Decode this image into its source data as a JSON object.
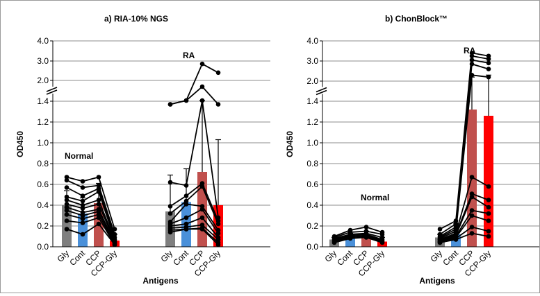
{
  "chart_data": [
    {
      "type": "bar",
      "title": "a) RIA-10% NGS",
      "xlabel": "Antigens",
      "ylabel": "OD450",
      "yticks": [
        "0.0",
        "0.2",
        "0.4",
        "0.6",
        "0.8",
        "1.0",
        "1.2",
        "1.4",
        "2.0",
        "3.0",
        "4.0"
      ],
      "axis_break": "between 1.4 and 2.0",
      "grid": true,
      "colors": {
        "Gly": "#7f7f7f",
        "Cont": "#4a90d9",
        "CCP": "#c0504d",
        "CCP-Gly": "#ff0000"
      },
      "groups": [
        {
          "label": "Normal",
          "categories": [
            "Gly",
            "Cont",
            "CCP",
            "CCP-Gly"
          ],
          "bar_values": [
            0.4,
            0.32,
            0.42,
            0.06
          ],
          "errors": [
            0.54,
            0.47,
            0.61,
            0.12
          ],
          "lines": [
            [
              0.67,
              0.63,
              0.67,
              0.17
            ],
            [
              0.64,
              0.57,
              0.59,
              0.12
            ],
            [
              0.57,
              0.49,
              0.56,
              0.09
            ],
            [
              0.48,
              0.44,
              0.53,
              0.07
            ],
            [
              0.45,
              0.4,
              0.45,
              0.06
            ],
            [
              0.41,
              0.37,
              0.41,
              0.05
            ],
            [
              0.38,
              0.33,
              0.36,
              0.04
            ],
            [
              0.35,
              0.3,
              0.34,
              0.04
            ],
            [
              0.31,
              0.27,
              0.31,
              0.03
            ],
            [
              0.25,
              0.23,
              0.28,
              0.02
            ],
            [
              0.17,
              0.12,
              0.22,
              0.02
            ]
          ]
        },
        {
          "label": "RA",
          "categories": [
            "Gly",
            "Cont",
            "CCP",
            "CCP-Gly"
          ],
          "bar_values": [
            0.34,
            0.43,
            0.72,
            0.4
          ],
          "errors": [
            0.69,
            0.75,
            1.42,
            1.03
          ],
          "lines": [
            [
              1.37,
              1.42,
              2.85,
              2.4
            ],
            [
              1.37,
              1.42,
              1.82,
              1.37
            ],
            [
              0.62,
              0.59,
              1.42,
              0.28
            ],
            [
              0.39,
              0.49,
              0.61,
              0.25
            ],
            [
              0.32,
              0.44,
              0.58,
              0.22
            ],
            [
              0.24,
              0.41,
              0.39,
              0.16
            ],
            [
              0.22,
              0.28,
              0.36,
              0.13
            ],
            [
              0.2,
              0.22,
              0.28,
              0.09
            ],
            [
              0.18,
              0.19,
              0.21,
              0.07
            ],
            [
              0.16,
              0.17,
              0.18,
              0.04
            ],
            [
              0.14,
              0.17,
              0.17,
              0.02
            ]
          ]
        }
      ]
    },
    {
      "type": "bar",
      "title": "b) ChonBlock™",
      "xlabel": "Antigens",
      "ylabel": "OD450",
      "yticks": [
        "0.0",
        "0.2",
        "0.4",
        "0.6",
        "0.8",
        "1.0",
        "1.2",
        "1.4",
        "2.0",
        "3.0",
        "4.0"
      ],
      "axis_break": "between 1.4 and 2.0",
      "grid": true,
      "colors": {
        "Gly": "#7f7f7f",
        "Cont": "#4a90d9",
        "CCP": "#c0504d",
        "CCP-Gly": "#ff0000"
      },
      "groups": [
        {
          "label": "Normal",
          "categories": [
            "Gly",
            "Cont",
            "CCP",
            "CCP-Gly"
          ],
          "bar_values": [
            0.07,
            0.1,
            0.1,
            0.05
          ],
          "errors": [
            0.09,
            0.13,
            0.15,
            0.09
          ],
          "lines": [
            [
              0.1,
              0.16,
              0.19,
              0.14
            ],
            [
              0.09,
              0.14,
              0.15,
              0.12
            ],
            [
              0.08,
              0.12,
              0.13,
              0.09
            ],
            [
              0.07,
              0.11,
              0.12,
              0.07
            ],
            [
              0.06,
              0.1,
              0.11,
              0.06
            ],
            [
              0.05,
              0.09,
              0.1,
              0.05
            ],
            [
              0.04,
              0.08,
              0.09,
              0.04
            ]
          ]
        },
        {
          "label": "RA",
          "categories": [
            "Gly",
            "Cont",
            "CCP",
            "CCP-Gly"
          ],
          "bar_values": [
            0.09,
            0.12,
            1.32,
            1.26
          ],
          "errors": [
            0.12,
            0.22,
            2.2,
            2.3
          ],
          "lines": [
            [
              0.17,
              0.25,
              3.4,
              3.25
            ],
            [
              0.12,
              0.22,
              3.25,
              3.1
            ],
            [
              0.1,
              0.19,
              3.05,
              2.9
            ],
            [
              0.09,
              0.17,
              2.85,
              2.6
            ],
            [
              0.08,
              0.15,
              2.3,
              2.2
            ],
            [
              0.07,
              0.13,
              0.67,
              0.58
            ],
            [
              0.07,
              0.12,
              0.51,
              0.45
            ],
            [
              0.06,
              0.11,
              0.48,
              0.38
            ],
            [
              0.05,
              0.1,
              0.35,
              0.32
            ],
            [
              0.05,
              0.09,
              0.3,
              0.25
            ],
            [
              0.04,
              0.08,
              0.19,
              0.15
            ],
            [
              0.04,
              0.07,
              0.13,
              0.1
            ]
          ]
        }
      ]
    }
  ]
}
